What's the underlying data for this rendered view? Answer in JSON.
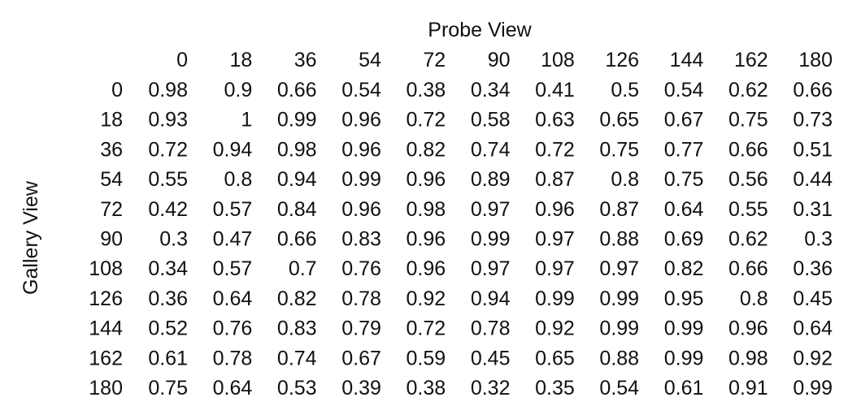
{
  "chart_data": {
    "type": "table",
    "title": "",
    "xlabel": "Probe View",
    "ylabel": "Gallery View",
    "columns": [
      "0",
      "18",
      "36",
      "54",
      "72",
      "90",
      "108",
      "126",
      "144",
      "162",
      "180"
    ],
    "rows": [
      "0",
      "18",
      "36",
      "54",
      "72",
      "90",
      "108",
      "126",
      "144",
      "162",
      "180"
    ],
    "values": [
      [
        0.98,
        0.9,
        0.66,
        0.54,
        0.38,
        0.34,
        0.41,
        0.5,
        0.54,
        0.62,
        0.66
      ],
      [
        0.93,
        1,
        0.99,
        0.96,
        0.72,
        0.58,
        0.63,
        0.65,
        0.67,
        0.75,
        0.73
      ],
      [
        0.72,
        0.94,
        0.98,
        0.96,
        0.82,
        0.74,
        0.72,
        0.75,
        0.77,
        0.66,
        0.51
      ],
      [
        0.55,
        0.8,
        0.94,
        0.99,
        0.96,
        0.89,
        0.87,
        0.8,
        0.75,
        0.56,
        0.44
      ],
      [
        0.42,
        0.57,
        0.84,
        0.96,
        0.98,
        0.97,
        0.96,
        0.87,
        0.64,
        0.55,
        0.31
      ],
      [
        0.3,
        0.47,
        0.66,
        0.83,
        0.96,
        0.99,
        0.97,
        0.88,
        0.69,
        0.62,
        0.3
      ],
      [
        0.34,
        0.57,
        0.7,
        0.76,
        0.96,
        0.97,
        0.97,
        0.97,
        0.82,
        0.66,
        0.36
      ],
      [
        0.36,
        0.64,
        0.82,
        0.78,
        0.92,
        0.94,
        0.99,
        0.99,
        0.95,
        0.8,
        0.45
      ],
      [
        0.52,
        0.76,
        0.83,
        0.79,
        0.72,
        0.78,
        0.92,
        0.99,
        0.99,
        0.96,
        0.64
      ],
      [
        0.61,
        0.78,
        0.74,
        0.67,
        0.59,
        0.45,
        0.65,
        0.88,
        0.99,
        0.98,
        0.92
      ],
      [
        0.75,
        0.64,
        0.53,
        0.39,
        0.38,
        0.32,
        0.35,
        0.54,
        0.61,
        0.91,
        0.99
      ]
    ],
    "grid": false,
    "text_color": "#111111",
    "background": "#ffffff"
  }
}
